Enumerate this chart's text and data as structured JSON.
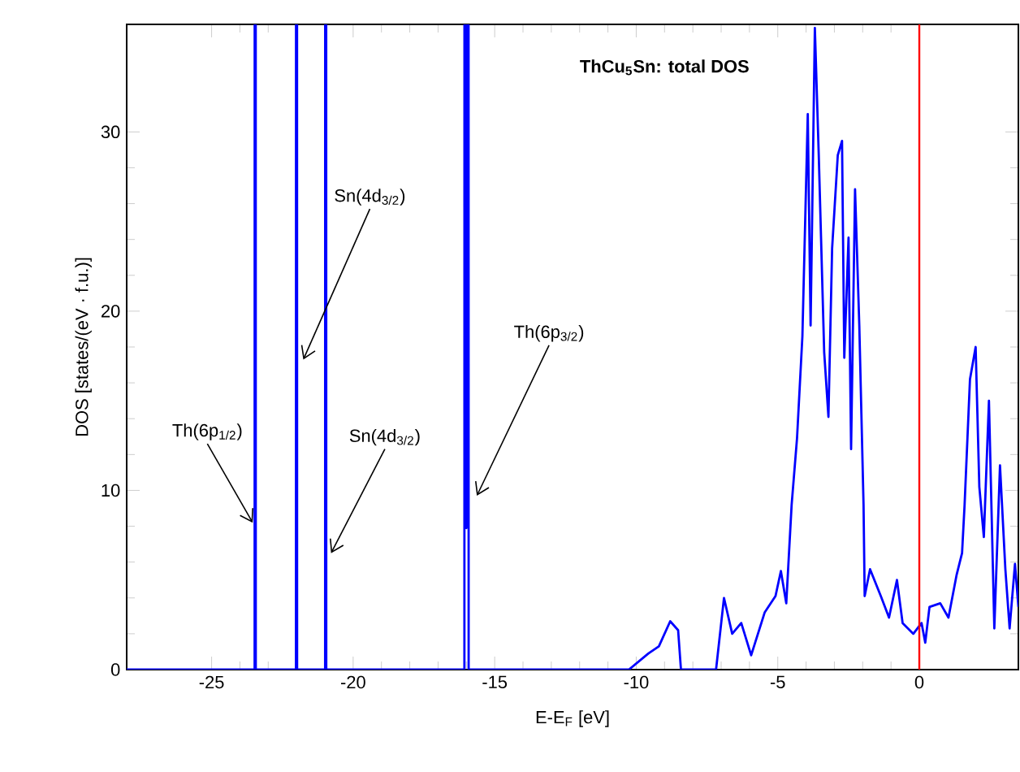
{
  "chart_data": {
    "type": "line",
    "title": "ThCu$_{5}$Sn: total DOS",
    "xlabel": "E-E$_{F}$ [eV]",
    "ylabel": "DOS [states/(eV · f.u.)]",
    "xlim": [
      -28,
      3.5
    ],
    "ylim": [
      0,
      36
    ],
    "xticks": [
      -25,
      -20,
      -15,
      -10,
      -5,
      0
    ],
    "yticks": [
      0,
      10,
      20,
      30
    ],
    "grid": false,
    "marker": "none",
    "line_style": "solid",
    "series": [
      {
        "color": "#0000ff",
        "x": [
          -28,
          -23.48,
          -23.46,
          -23.44,
          -22.02,
          -22.0,
          -21.98,
          -20.99,
          -20.97,
          -20.95,
          -16.07,
          -16.05,
          -16.0,
          -15.95,
          -15.92,
          -10.26,
          -9.57,
          -9.2,
          -8.8,
          -8.52,
          -8.42,
          -7.18,
          -6.9,
          -6.61,
          -6.29,
          -5.94,
          -5.46,
          -5.08,
          -4.89,
          -4.7,
          -4.51,
          -4.32,
          -4.13,
          -3.94,
          -3.84,
          -3.69,
          -3.55,
          -3.36,
          -3.21,
          -3.08,
          -2.88,
          -2.73,
          -2.65,
          -2.5,
          -2.41,
          -2.27,
          -2.12,
          -1.97,
          -1.93,
          -1.74,
          -1.36,
          -1.07,
          -0.79,
          -0.59,
          -0.21,
          0.08,
          0.21,
          0.36,
          0.74,
          1.03,
          1.32,
          1.51,
          1.6,
          1.79,
          1.99,
          2.12,
          2.28,
          2.46,
          2.65,
          2.85,
          3.04,
          3.19,
          3.38,
          3.5
        ],
        "values": [
          0,
          0,
          null,
          0,
          0,
          null,
          0,
          0,
          null,
          0,
          0,
          null,
          7.9,
          null,
          0,
          0,
          0.9,
          1.3,
          2.7,
          2.2,
          0,
          0,
          4.0,
          2.0,
          2.6,
          0.8,
          3.2,
          4.1,
          5.5,
          3.7,
          9.2,
          12.9,
          18.6,
          31.0,
          19.2,
          35.8,
          28.6,
          17.7,
          14.1,
          23.5,
          28.7,
          29.5,
          17.4,
          24.1,
          12.3,
          26.8,
          19.2,
          9.2,
          4.1,
          5.6,
          4.1,
          2.9,
          5.0,
          2.6,
          2.0,
          2.6,
          1.5,
          3.5,
          3.7,
          2.9,
          5.3,
          6.5,
          9.2,
          16.2,
          18.0,
          10.2,
          7.4,
          15.0,
          2.3,
          11.4,
          5.6,
          2.3,
          5.9,
          3.5
        ]
      }
    ],
    "ref_lines": [
      {
        "axis": "x",
        "value": 0,
        "color": "#ff0000"
      }
    ],
    "annotations": [
      {
        "text": "Th(6p$_{1/2}$)",
        "x": -23.55,
        "y": 8.2
      },
      {
        "text": "Sn(4d$_{3/2}$)",
        "x": -21.76,
        "y": 17.3
      },
      {
        "text": "Sn(4d$_{3/2}$)",
        "x": -20.78,
        "y": 6.5
      },
      {
        "text": "Th(6p$_{3/2}$)",
        "x": -15.63,
        "y": 9.7
      }
    ]
  }
}
